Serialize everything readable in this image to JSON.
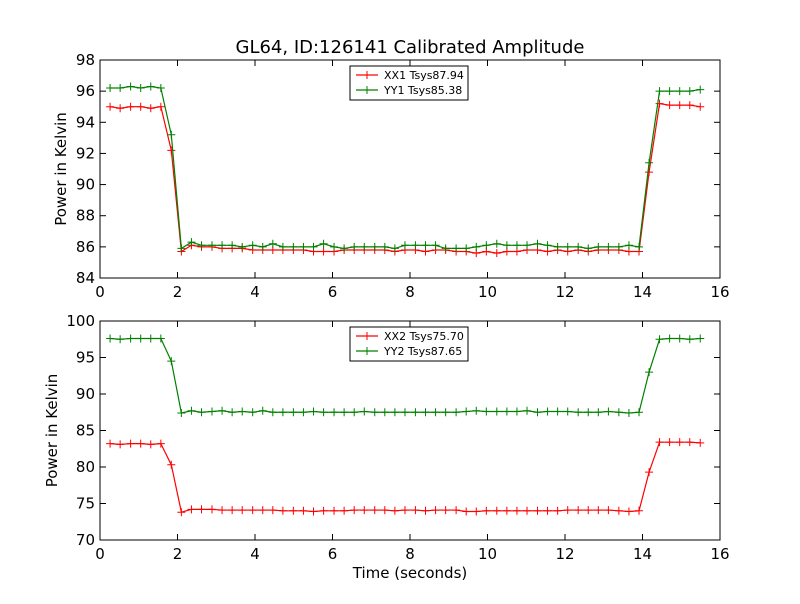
{
  "title": "GL64, ID:126141 Calibrated Amplitude",
  "chart_data": [
    {
      "type": "line",
      "title": "GL64, ID:126141 Calibrated Amplitude",
      "xlabel": "",
      "ylabel": "Power in Kelvin",
      "xlim": [
        0,
        16
      ],
      "ylim": [
        84,
        98
      ],
      "xticks": [
        "0",
        "2",
        "4",
        "6",
        "8",
        "10",
        "12",
        "14",
        "16"
      ],
      "yticks": [
        "84",
        "86",
        "88",
        "90",
        "92",
        "94",
        "96",
        "98"
      ],
      "legend_position": "top-center",
      "grid": false,
      "x": [
        0.26,
        0.52,
        0.79,
        1.05,
        1.31,
        1.57,
        1.84,
        2.1,
        2.36,
        2.62,
        2.89,
        3.15,
        3.41,
        3.67,
        3.94,
        4.2,
        4.46,
        4.72,
        4.99,
        5.25,
        5.51,
        5.77,
        6.04,
        6.3,
        6.56,
        6.82,
        7.09,
        7.35,
        7.61,
        7.87,
        8.14,
        8.4,
        8.66,
        8.92,
        9.19,
        9.45,
        9.71,
        9.97,
        10.24,
        10.5,
        10.76,
        11.02,
        11.29,
        11.55,
        11.81,
        12.07,
        12.34,
        12.6,
        12.86,
        13.12,
        13.39,
        13.65,
        13.91,
        14.17,
        14.44,
        14.7,
        14.96,
        15.22,
        15.49
      ],
      "series": [
        {
          "name": "XX1 Tsys87.94",
          "color": "#ff0000",
          "values": [
            95.0,
            94.9,
            95.0,
            95.0,
            94.9,
            95.0,
            92.2,
            85.7,
            86.1,
            86.0,
            86.0,
            85.9,
            85.9,
            85.9,
            85.8,
            85.8,
            85.8,
            85.8,
            85.8,
            85.8,
            85.7,
            85.7,
            85.7,
            85.8,
            85.8,
            85.8,
            85.8,
            85.8,
            85.7,
            85.8,
            85.8,
            85.7,
            85.8,
            85.8,
            85.7,
            85.7,
            85.6,
            85.7,
            85.6,
            85.7,
            85.7,
            85.8,
            85.8,
            85.7,
            85.8,
            85.7,
            85.8,
            85.7,
            85.8,
            85.8,
            85.8,
            85.7,
            85.7,
            90.8,
            95.2,
            95.1,
            95.1,
            95.1,
            95.0
          ]
        },
        {
          "name": "YY1 Tsys85.38",
          "color": "#008000",
          "values": [
            96.2,
            96.2,
            96.3,
            96.2,
            96.3,
            96.2,
            93.2,
            85.9,
            86.3,
            86.1,
            86.1,
            86.1,
            86.1,
            86.0,
            86.1,
            86.0,
            86.2,
            86.0,
            86.0,
            86.0,
            86.0,
            86.2,
            86.0,
            85.9,
            86.0,
            86.0,
            86.0,
            86.0,
            85.9,
            86.1,
            86.1,
            86.1,
            86.1,
            85.9,
            85.9,
            85.9,
            86.0,
            86.1,
            86.2,
            86.1,
            86.1,
            86.1,
            86.2,
            86.1,
            86.0,
            86.0,
            86.0,
            85.9,
            86.0,
            86.0,
            86.0,
            86.1,
            86.0,
            91.4,
            96.0,
            96.0,
            96.0,
            96.0,
            96.1
          ]
        }
      ]
    },
    {
      "type": "line",
      "title": "",
      "xlabel": "Time (seconds)",
      "ylabel": "Power in Kelvin",
      "xlim": [
        0,
        16
      ],
      "ylim": [
        70,
        100
      ],
      "xticks": [
        "0",
        "2",
        "4",
        "6",
        "8",
        "10",
        "12",
        "14",
        "16"
      ],
      "yticks": [
        "70",
        "75",
        "80",
        "85",
        "90",
        "95",
        "100"
      ],
      "legend_position": "top-center",
      "grid": false,
      "x": [
        0.26,
        0.52,
        0.79,
        1.05,
        1.31,
        1.57,
        1.84,
        2.1,
        2.36,
        2.62,
        2.89,
        3.15,
        3.41,
        3.67,
        3.94,
        4.2,
        4.46,
        4.72,
        4.99,
        5.25,
        5.51,
        5.77,
        6.04,
        6.3,
        6.56,
        6.82,
        7.09,
        7.35,
        7.61,
        7.87,
        8.14,
        8.4,
        8.66,
        8.92,
        9.19,
        9.45,
        9.71,
        9.97,
        10.24,
        10.5,
        10.76,
        11.02,
        11.29,
        11.55,
        11.81,
        12.07,
        12.34,
        12.6,
        12.86,
        13.12,
        13.39,
        13.65,
        13.91,
        14.17,
        14.44,
        14.7,
        14.96,
        15.22,
        15.49
      ],
      "series": [
        {
          "name": "XX2 Tsys75.70",
          "color": "#ff0000",
          "values": [
            83.2,
            83.1,
            83.2,
            83.2,
            83.1,
            83.2,
            80.3,
            73.8,
            74.2,
            74.2,
            74.2,
            74.1,
            74.1,
            74.1,
            74.1,
            74.1,
            74.1,
            74.0,
            74.0,
            74.0,
            73.9,
            74.0,
            74.0,
            74.0,
            74.1,
            74.1,
            74.1,
            74.1,
            74.0,
            74.1,
            74.1,
            74.0,
            74.1,
            74.1,
            74.1,
            73.9,
            73.9,
            74.0,
            74.0,
            74.0,
            74.0,
            74.0,
            74.0,
            74.0,
            74.0,
            74.1,
            74.1,
            74.1,
            74.1,
            74.1,
            74.0,
            73.9,
            74.0,
            79.3,
            83.4,
            83.4,
            83.4,
            83.4,
            83.3
          ]
        },
        {
          "name": "YY2 Tsys87.65",
          "color": "#008000",
          "values": [
            97.6,
            97.5,
            97.6,
            97.6,
            97.6,
            97.6,
            94.5,
            87.4,
            87.7,
            87.5,
            87.6,
            87.7,
            87.5,
            87.6,
            87.5,
            87.7,
            87.5,
            87.5,
            87.5,
            87.5,
            87.6,
            87.5,
            87.5,
            87.5,
            87.5,
            87.6,
            87.5,
            87.5,
            87.5,
            87.5,
            87.5,
            87.5,
            87.5,
            87.5,
            87.5,
            87.6,
            87.7,
            87.6,
            87.6,
            87.6,
            87.6,
            87.7,
            87.5,
            87.6,
            87.6,
            87.6,
            87.5,
            87.5,
            87.5,
            87.6,
            87.5,
            87.4,
            87.5,
            93.0,
            97.5,
            97.6,
            97.6,
            97.5,
            97.6
          ]
        }
      ]
    }
  ]
}
